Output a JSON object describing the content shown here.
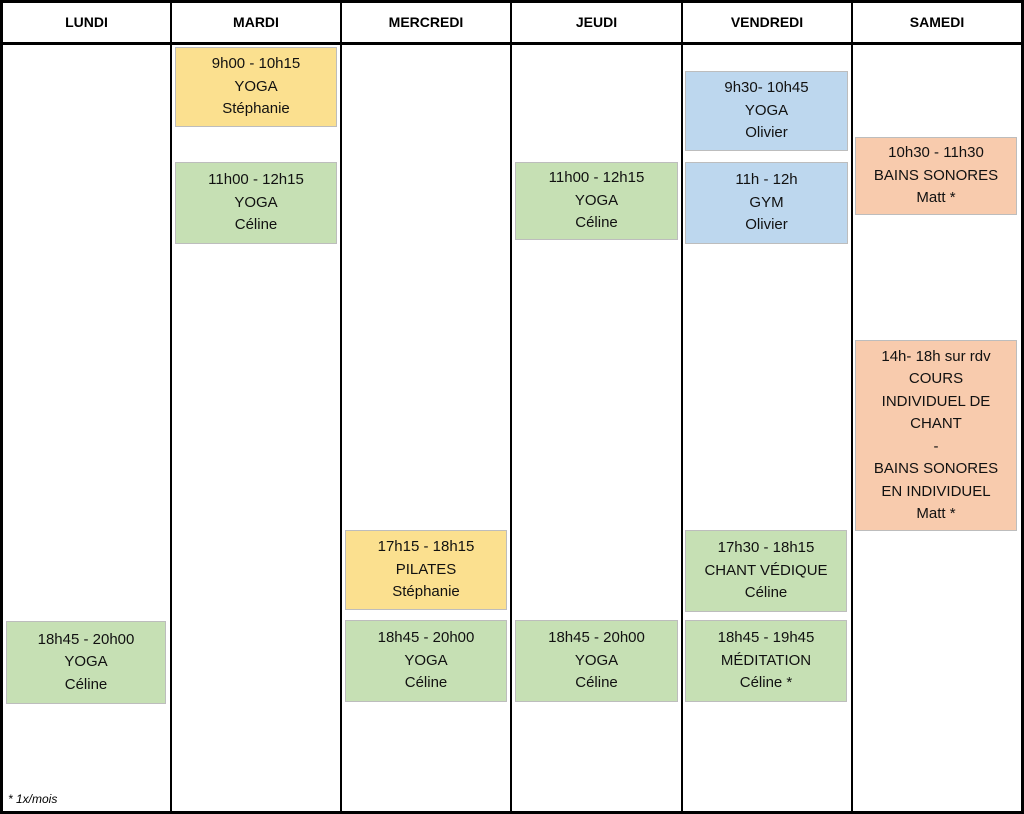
{
  "days": [
    "LUNDI",
    "MARDI",
    "MERCREDI",
    "JEUDI",
    "VENDREDI",
    "SAMEDI"
  ],
  "events": {
    "mardi_1": {
      "time": "9h00 - 10h15",
      "activity": "YOGA",
      "teacher": "Stéphanie",
      "color": "#fbe08f"
    },
    "mardi_2": {
      "time": "11h00 - 12h15",
      "activity": "YOGA",
      "teacher": "Céline",
      "color": "#c6e0b4"
    },
    "lundi_1": {
      "time": "18h45 - 20h00",
      "activity": "YOGA",
      "teacher": "Céline",
      "color": "#c6e0b4"
    },
    "mercredi_1": {
      "time": "17h15 - 18h15",
      "activity": "PILATES",
      "teacher": "Stéphanie",
      "color": "#fbe08f"
    },
    "mercredi_2": {
      "time": "18h45 - 20h00",
      "activity": "YOGA",
      "teacher": "Céline",
      "color": "#c6e0b4"
    },
    "jeudi_1": {
      "time": "11h00 - 12h15",
      "activity": "YOGA",
      "teacher": "Céline",
      "color": "#c6e0b4"
    },
    "jeudi_2": {
      "time": "18h45 - 20h00",
      "activity": "YOGA",
      "teacher": "Céline",
      "color": "#c6e0b4"
    },
    "vendredi_1": {
      "time": "9h30- 10h45",
      "activity": "YOGA",
      "teacher": "Olivier",
      "color": "#bdd7ee"
    },
    "vendredi_2": {
      "time": "11h - 12h",
      "activity": "GYM",
      "teacher": "Olivier",
      "color": "#bdd7ee"
    },
    "vendredi_3": {
      "time": "17h30 - 18h15",
      "activity": "CHANT VÉDIQUE",
      "teacher": "Céline",
      "color": "#c6e0b4"
    },
    "vendredi_4": {
      "time": "18h45 - 19h45",
      "activity": "MÉDITATION",
      "teacher": "Céline *",
      "color": "#c6e0b4"
    },
    "samedi_1": {
      "time": "10h30 - 11h30",
      "activity": "BAINS SONORES",
      "teacher": "Matt *",
      "color": "#f8cbad"
    },
    "samedi_2": {
      "lines": [
        "14h- 18h sur rdv",
        "COURS",
        "INDIVIDUEL DE",
        "CHANT",
        "-",
        "BAINS SONORES",
        "EN INDIVIDUEL",
        "Matt *"
      ],
      "color": "#f8cbad"
    }
  },
  "footnote": "* 1x/mois"
}
